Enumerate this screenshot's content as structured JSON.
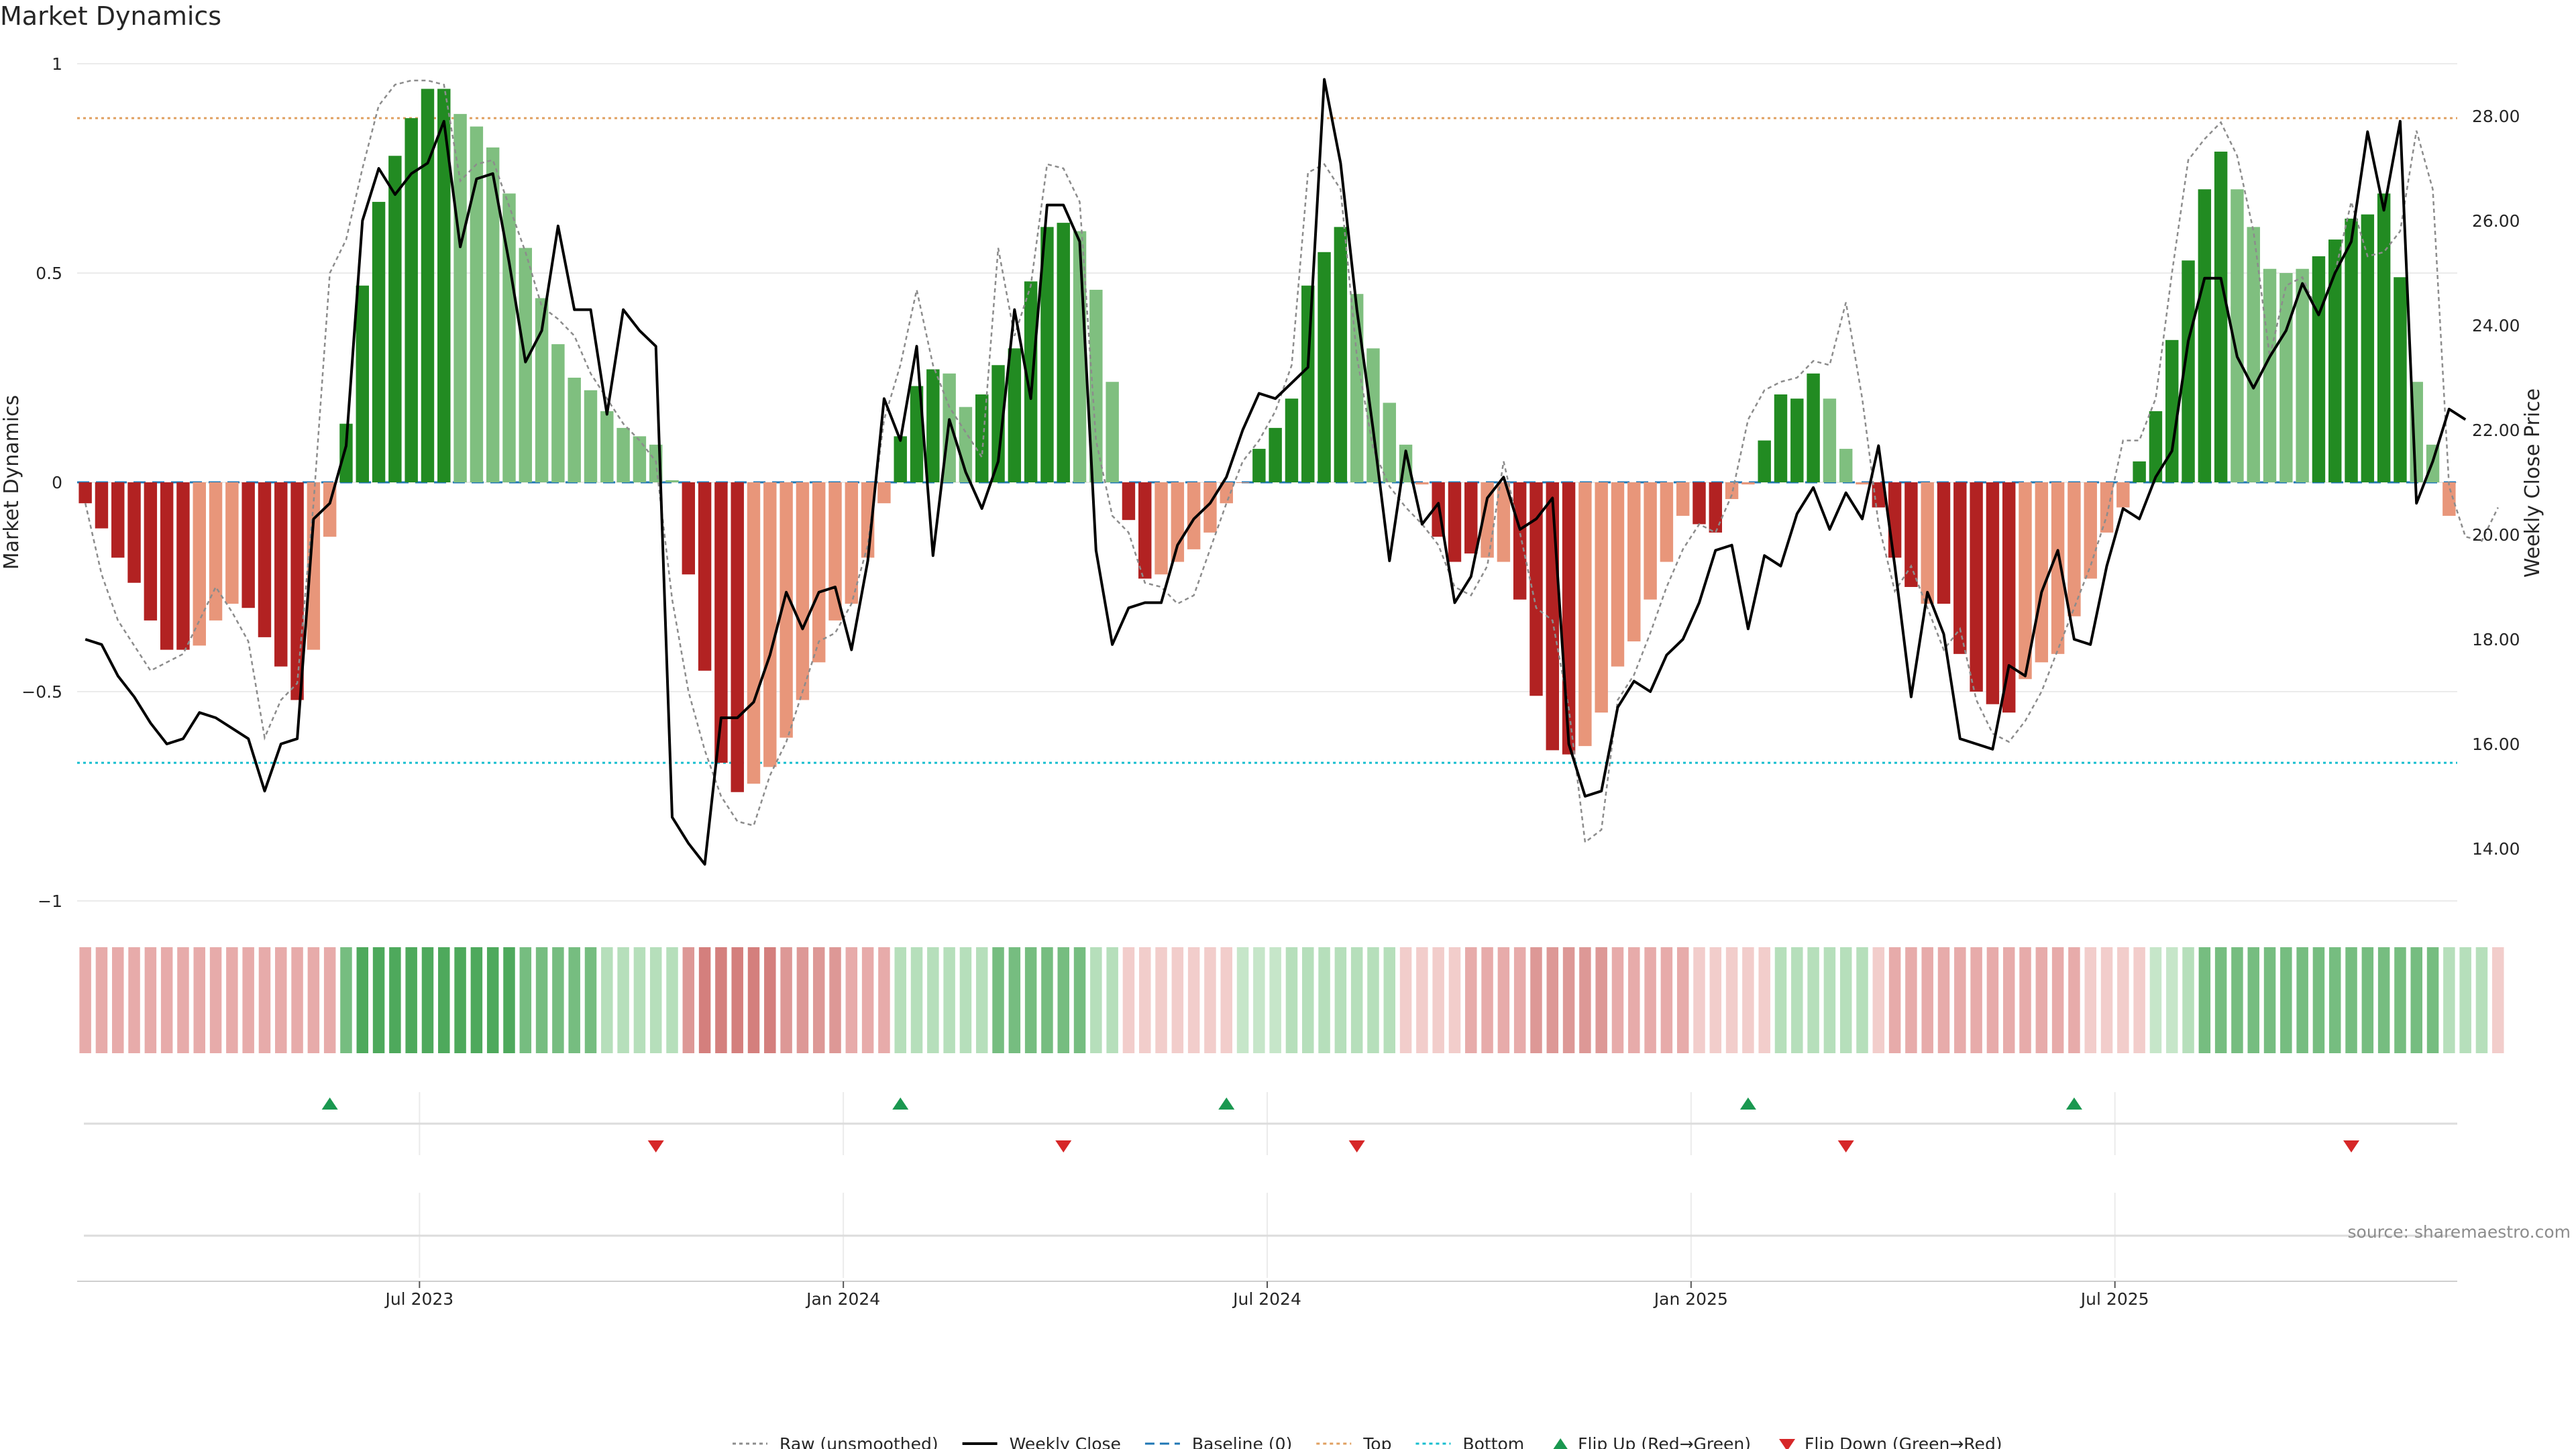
{
  "title": "Market Dynamics",
  "source_note": "source: sharemaestro.com",
  "colors": {
    "strong_green": "#228b22",
    "light_green": "#7fbf7f",
    "strong_red": "#b22222",
    "light_red": "#e8967a",
    "close_line": "#000000",
    "raw_line": "#8c8c8c",
    "baseline": "#1f77b4",
    "top_line": "#e0a060",
    "bottom_line": "#17becf",
    "flip_up": "#1a9850",
    "flip_down": "#d62728"
  },
  "chart_data": {
    "type": "bar",
    "ylabel_left": "Market Dynamics",
    "ylabel_right": "Weekly Close Price",
    "ylim_left": [
      -1,
      1
    ],
    "ylim_right": [
      13.0,
      29.0
    ],
    "left_ticks": [
      "1",
      "0.5",
      "0",
      "−0.5",
      "−1"
    ],
    "left_tick_values": [
      1,
      0.5,
      0,
      -0.5,
      -1
    ],
    "right_ticks": [
      "28.00",
      "26.00",
      "24.00",
      "22.00",
      "20.00",
      "18.00",
      "16.00",
      "14.00"
    ],
    "right_tick_values": [
      28,
      26,
      24,
      22,
      20,
      18,
      16,
      14
    ],
    "x_ticks": [
      "Jul 2023",
      "Jan 2024",
      "Jul 2024",
      "Jan 2025",
      "Jul 2025"
    ],
    "x_tick_weeks": [
      21,
      47,
      73,
      99,
      125
    ],
    "top_level": 0.87,
    "bottom_level": -0.67,
    "baseline": 0,
    "bars": [
      -0.05,
      -0.11,
      -0.18,
      -0.24,
      -0.33,
      -0.4,
      -0.4,
      -0.39,
      -0.33,
      -0.29,
      -0.3,
      -0.37,
      -0.44,
      -0.52,
      -0.4,
      -0.13,
      0.14,
      0.47,
      0.67,
      0.78,
      0.87,
      0.94,
      0.94,
      0.88,
      0.85,
      0.8,
      0.69,
      0.56,
      0.44,
      0.33,
      0.25,
      0.22,
      0.17,
      0.13,
      0.11,
      0.09,
      0.005,
      -0.22,
      -0.45,
      -0.67,
      -0.74,
      -0.72,
      -0.68,
      -0.61,
      -0.52,
      -0.43,
      -0.33,
      -0.29,
      -0.18,
      -0.05,
      0.11,
      0.23,
      0.27,
      0.26,
      0.18,
      0.21,
      0.28,
      0.32,
      0.48,
      0.61,
      0.62,
      0.6,
      0.46,
      0.24,
      -0.09,
      -0.23,
      -0.22,
      -0.19,
      -0.16,
      -0.12,
      -0.05,
      -0.001,
      0.08,
      0.13,
      0.2,
      0.47,
      0.55,
      0.61,
      0.45,
      0.32,
      0.19,
      0.09,
      -0.005,
      -0.13,
      -0.19,
      -0.17,
      -0.18,
      -0.19,
      -0.28,
      -0.51,
      -0.64,
      -0.65,
      -0.63,
      -0.55,
      -0.44,
      -0.38,
      -0.28,
      -0.19,
      -0.08,
      -0.1,
      -0.12,
      -0.04,
      -0.005,
      0.1,
      0.21,
      0.2,
      0.26,
      0.2,
      0.08,
      -0.005,
      -0.06,
      -0.18,
      -0.25,
      -0.29,
      -0.29,
      -0.41,
      -0.5,
      -0.53,
      -0.55,
      -0.47,
      -0.43,
      -0.41,
      -0.32,
      -0.23,
      -0.12,
      -0.06,
      0.05,
      0.17,
      0.34,
      0.53,
      0.7,
      0.79,
      0.7,
      0.61,
      0.51,
      0.5,
      0.51,
      0.54,
      0.58,
      0.63,
      0.64,
      0.69,
      0.49,
      0.24,
      0.09,
      -0.08
    ],
    "bar_shades": [
      "S",
      "S",
      "S",
      "S",
      "S",
      "S",
      "S",
      "L",
      "L",
      "L",
      "S",
      "S",
      "S",
      "S",
      "L",
      "L",
      "S",
      "S",
      "S",
      "S",
      "S",
      "S",
      "S",
      "L",
      "L",
      "L",
      "L",
      "L",
      "L",
      "L",
      "L",
      "L",
      "L",
      "L",
      "L",
      "L",
      "L",
      "S",
      "S",
      "S",
      "S",
      "L",
      "L",
      "L",
      "L",
      "L",
      "L",
      "L",
      "L",
      "L",
      "S",
      "S",
      "S",
      "L",
      "L",
      "S",
      "S",
      "S",
      "S",
      "S",
      "S",
      "L",
      "L",
      "L",
      "S",
      "S",
      "L",
      "L",
      "L",
      "L",
      "L",
      "L",
      "S",
      "S",
      "S",
      "S",
      "S",
      "S",
      "L",
      "L",
      "L",
      "L",
      "L",
      "S",
      "S",
      "S",
      "L",
      "L",
      "S",
      "S",
      "S",
      "S",
      "L",
      "L",
      "L",
      "L",
      "L",
      "L",
      "L",
      "S",
      "S",
      "L",
      "L",
      "S",
      "S",
      "S",
      "S",
      "L",
      "L",
      "L",
      "S",
      "S",
      "S",
      "L",
      "S",
      "S",
      "S",
      "S",
      "S",
      "L",
      "L",
      "L",
      "L",
      "L",
      "L",
      "L",
      "S",
      "S",
      "S",
      "S",
      "S",
      "S",
      "L",
      "L",
      "L",
      "L",
      "L",
      "S",
      "S",
      "S",
      "S",
      "S",
      "S",
      "L",
      "L",
      "L",
      "S"
    ],
    "raw": [
      -0.05,
      -0.22,
      -0.33,
      -0.39,
      -0.45,
      -0.43,
      -0.41,
      -0.33,
      -0.25,
      -0.31,
      -0.38,
      -0.61,
      -0.52,
      -0.48,
      -0.05,
      0.5,
      0.58,
      0.75,
      0.9,
      0.95,
      0.96,
      0.96,
      0.95,
      0.72,
      0.76,
      0.77,
      0.66,
      0.55,
      0.42,
      0.39,
      0.35,
      0.26,
      0.2,
      0.14,
      0.1,
      0.05,
      -0.28,
      -0.5,
      -0.64,
      -0.75,
      -0.81,
      -0.82,
      -0.7,
      -0.62,
      -0.5,
      -0.38,
      -0.36,
      -0.29,
      -0.15,
      0.15,
      0.28,
      0.46,
      0.28,
      0.18,
      0.12,
      0.06,
      0.56,
      0.35,
      0.47,
      0.76,
      0.75,
      0.67,
      0.1,
      -0.08,
      -0.12,
      -0.24,
      -0.25,
      -0.29,
      -0.27,
      -0.16,
      -0.05,
      0.05,
      0.1,
      0.17,
      0.28,
      0.74,
      0.76,
      0.7,
      0.3,
      0.08,
      -0.01,
      -0.06,
      -0.1,
      -0.15,
      -0.25,
      -0.27,
      -0.2,
      0.05,
      -0.12,
      -0.3,
      -0.33,
      -0.54,
      -0.86,
      -0.83,
      -0.52,
      -0.46,
      -0.36,
      -0.25,
      -0.16,
      -0.1,
      -0.12,
      -0.03,
      0.15,
      0.22,
      0.24,
      0.25,
      0.29,
      0.28,
      0.43,
      0.2,
      -0.1,
      -0.26,
      -0.2,
      -0.3,
      -0.4,
      -0.35,
      -0.52,
      -0.6,
      -0.62,
      -0.57,
      -0.5,
      -0.4,
      -0.3,
      -0.2,
      -0.08,
      0.1,
      0.1,
      0.2,
      0.5,
      0.77,
      0.82,
      0.86,
      0.78,
      0.6,
      0.3,
      0.47,
      0.49,
      0.4,
      0.5,
      0.67,
      0.54,
      0.55,
      0.6,
      0.84,
      0.7,
      -0.01,
      -0.13,
      -0.14,
      -0.06
    ],
    "close": [
      18.0,
      17.9,
      17.3,
      16.9,
      16.4,
      16.0,
      16.1,
      16.6,
      16.5,
      16.3,
      16.1,
      15.1,
      16.0,
      16.1,
      20.3,
      20.6,
      21.7,
      26.0,
      27.0,
      26.5,
      26.9,
      27.1,
      27.9,
      25.5,
      26.8,
      26.9,
      25.2,
      23.3,
      23.9,
      25.9,
      24.3,
      24.3,
      22.3,
      24.3,
      23.9,
      23.6,
      14.6,
      14.1,
      13.7,
      16.5,
      16.5,
      16.8,
      17.7,
      18.9,
      18.2,
      18.9,
      19.0,
      17.8,
      19.5,
      22.6,
      21.8,
      23.6,
      19.6,
      22.2,
      21.2,
      20.5,
      21.4,
      24.3,
      22.6,
      26.3,
      26.3,
      25.6,
      19.7,
      17.9,
      18.6,
      18.7,
      18.7,
      19.8,
      20.3,
      20.6,
      21.1,
      22.0,
      22.7,
      22.6,
      22.9,
      23.2,
      28.7,
      27.1,
      24.3,
      22.0,
      19.5,
      21.6,
      20.2,
      20.6,
      18.7,
      19.2,
      20.7,
      21.1,
      20.1,
      20.3,
      20.7,
      16.0,
      15.0,
      15.1,
      16.7,
      17.2,
      17.0,
      17.7,
      18.0,
      18.7,
      19.7,
      19.8,
      18.2,
      19.6,
      19.4,
      20.4,
      20.9,
      20.1,
      20.8,
      20.3,
      21.7,
      19.4,
      16.9,
      18.9,
      18.1,
      16.1,
      16.0,
      15.9,
      17.5,
      17.3,
      18.9,
      19.7,
      18.0,
      17.9,
      19.4,
      20.5,
      20.3,
      21.1,
      21.6,
      23.7,
      24.9,
      24.9,
      23.4,
      22.8,
      23.4,
      23.9,
      24.8,
      24.2,
      25.0,
      25.6,
      27.7,
      26.2,
      27.9,
      20.6,
      21.4,
      22.4,
      22.2
    ],
    "strip": [
      "r3",
      "r3",
      "r3",
      "r3",
      "r3",
      "r3",
      "r3",
      "r3",
      "r3",
      "r3",
      "r3",
      "r3",
      "r3",
      "r3",
      "r3",
      "r3",
      "g4",
      "g5",
      "g5",
      "g5",
      "g5",
      "g5",
      "g5",
      "g5",
      "g5",
      "g5",
      "g5",
      "g4",
      "g4",
      "g4",
      "g4",
      "g4",
      "g3",
      "g3",
      "g3",
      "g3",
      "g3",
      "r4",
      "r5",
      "r5",
      "r5",
      "r5",
      "r5",
      "r4",
      "r4",
      "r4",
      "r4",
      "r3",
      "r3",
      "r3",
      "g3",
      "g3",
      "g3",
      "g3",
      "g3",
      "g3",
      "g4",
      "g4",
      "g4",
      "g4",
      "g4",
      "g4",
      "g3",
      "g3",
      "r2",
      "r2",
      "r2",
      "r2",
      "r2",
      "r2",
      "r2",
      "g2",
      "g2",
      "g2",
      "g3",
      "g3",
      "g3",
      "g3",
      "g3",
      "g3",
      "g3",
      "r2",
      "r2",
      "r2",
      "r2",
      "r3",
      "r3",
      "r3",
      "r3",
      "r4",
      "r4",
      "r4",
      "r4",
      "r4",
      "r3",
      "r3",
      "r3",
      "r3",
      "r3",
      "r2",
      "r2",
      "r2",
      "r2",
      "r2",
      "g3",
      "g3",
      "g3",
      "g3",
      "g3",
      "g3",
      "r2",
      "r3",
      "r3",
      "r3",
      "r3",
      "r3",
      "r3",
      "r3",
      "r3",
      "r3",
      "r3",
      "r3",
      "r3",
      "r2",
      "r2",
      "r2",
      "r2",
      "g2",
      "g2",
      "g3",
      "g4",
      "g4",
      "g4",
      "g4",
      "g4",
      "g4",
      "g4",
      "g4",
      "g4",
      "g4",
      "g4",
      "g4",
      "g4",
      "g4",
      "g4",
      "g3",
      "g3",
      "g3",
      "r2"
    ],
    "flip_up_weeks": [
      15,
      50,
      70,
      102,
      122
    ],
    "flip_down_weeks": [
      35,
      60,
      78,
      108,
      139
    ]
  },
  "legend": [
    {
      "label": "Raw (unsmoothed)",
      "kind": "dotted-line",
      "color": "#8c8c8c"
    },
    {
      "label": "Weekly Close",
      "kind": "line",
      "color": "#000000"
    },
    {
      "label": "Baseline (0)",
      "kind": "dashed-line",
      "color": "#1f77b4"
    },
    {
      "label": "Top",
      "kind": "dotted-line",
      "color": "#e0a060"
    },
    {
      "label": "Bottom",
      "kind": "dotted-line",
      "color": "#17becf"
    },
    {
      "label": "Flip Up (Red→Green)",
      "kind": "triangle-up",
      "color": "#1a9850"
    },
    {
      "label": "Flip Down (Green→Red)",
      "kind": "triangle-down",
      "color": "#d62728"
    }
  ]
}
